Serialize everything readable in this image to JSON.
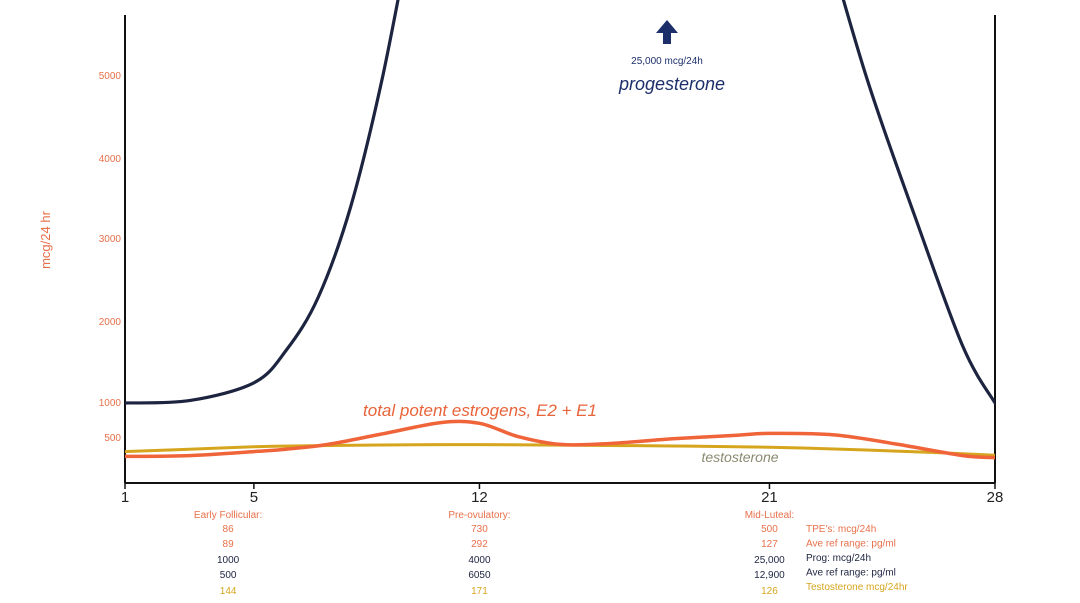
{
  "chart_data": {
    "type": "line",
    "ylabel": "mcg/24 hr",
    "y_ticks": [
      "5000",
      "4000",
      "3000",
      "2000",
      "1000",
      "500"
    ],
    "x_ticks": [
      "1",
      "5",
      "12",
      "21",
      "28"
    ],
    "series": [
      {
        "name": "progesterone",
        "color": "#1d2440",
        "points": [
          [
            1,
            1000
          ],
          [
            3,
            1030
          ],
          [
            5,
            1250
          ],
          [
            6,
            1650
          ],
          [
            7,
            2300
          ],
          [
            8,
            3400
          ],
          [
            9,
            5000
          ],
          [
            10,
            7000
          ]
        ]
      },
      {
        "name": "progesterone",
        "color": "#1d2440",
        "points": [
          [
            22.5,
            7000
          ],
          [
            24,
            5000
          ],
          [
            25.5,
            3300
          ],
          [
            27,
            1700
          ],
          [
            28,
            1000
          ]
        ]
      },
      {
        "name": "total potent estrogens, E2 + E1",
        "color": "#f0643a",
        "points": [
          [
            1,
            270
          ],
          [
            3,
            280
          ],
          [
            5,
            330
          ],
          [
            6,
            360
          ],
          [
            7.3,
            420
          ],
          [
            9,
            560
          ],
          [
            10.8,
            720
          ],
          [
            12,
            710
          ],
          [
            13.2,
            520
          ],
          [
            14.5,
            420
          ],
          [
            16,
            430
          ],
          [
            18,
            490
          ],
          [
            20,
            540
          ],
          [
            21,
            565
          ],
          [
            23,
            545
          ],
          [
            25,
            420
          ],
          [
            27,
            280
          ],
          [
            28,
            255
          ]
        ]
      },
      {
        "name": "testosterone",
        "color": "#d6a51e",
        "points": [
          [
            1,
            330
          ],
          [
            3,
            360
          ],
          [
            5,
            390
          ],
          [
            7,
            405
          ],
          [
            10,
            415
          ],
          [
            12,
            418
          ],
          [
            15,
            410
          ],
          [
            18,
            400
          ],
          [
            21,
            385
          ],
          [
            24,
            350
          ],
          [
            26,
            320
          ],
          [
            28,
            285
          ]
        ]
      }
    ],
    "annotations": {
      "prog_value": "25,000 mcg/24h",
      "prog_label": "progesterone",
      "estrogen_label": "total potent estrogens, E2 + E1",
      "testosterone_label": "testosterone"
    },
    "table": {
      "columns": [
        {
          "header_1": "Early Follicular:",
          "header_2": "",
          "values": [
            "86",
            "89",
            "1000",
            "500",
            "144"
          ]
        },
        {
          "header_1": "Pre-ovulatory:",
          "header_2": "",
          "values": [
            "730",
            "292",
            "4000",
            "6050",
            "171"
          ]
        },
        {
          "header_1": "Mid-Luteal:",
          "header_2": "",
          "values": [
            "500",
            "127",
            "25,000",
            "12,900",
            "126"
          ]
        }
      ],
      "legend": [
        "TPE's: mcg/24h",
        "Ave ref range: pg/ml",
        "Prog: mcg/24h",
        "Ave ref range: pg/ml",
        "Testosterone mcg/24hr"
      ],
      "row_colors": [
        "#e8704a",
        "#e8704a",
        "#1d2440",
        "#1d2440",
        "#d6a51e"
      ]
    }
  }
}
